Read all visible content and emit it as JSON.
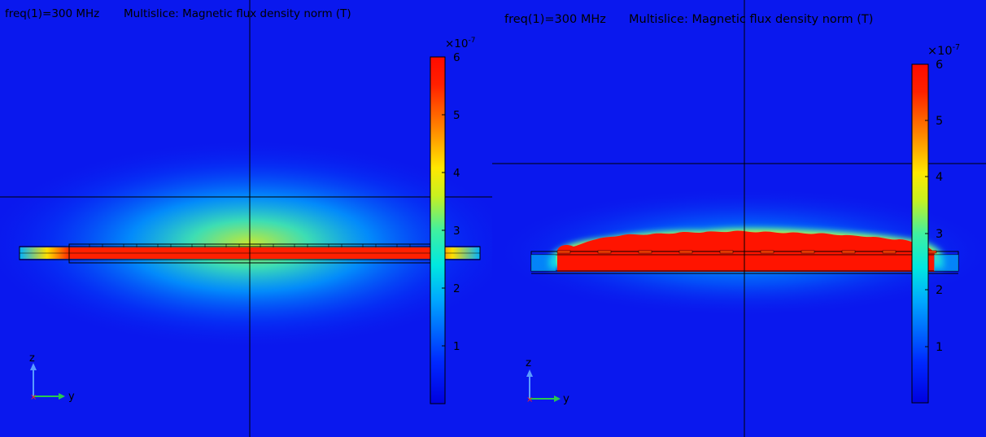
{
  "panels": [
    {
      "id": "left",
      "header": {
        "freq": "freq(1)=300 MHz",
        "plot": "Multislice: Magnetic flux density norm (T)"
      },
      "colorbar": {
        "exponent_base": "×10",
        "exponent_power": "-7",
        "ticks": [
          "1",
          "2",
          "3",
          "4",
          "5",
          "6"
        ],
        "range": [
          0,
          6
        ]
      },
      "axes": {
        "vertical": "z",
        "horizontal": "y"
      }
    },
    {
      "id": "right",
      "header": {
        "freq": "freq(1)=300 MHz",
        "plot": "Multislice: Magnetic flux density norm (T)"
      },
      "colorbar": {
        "exponent_base": "×10",
        "exponent_power": "-7",
        "ticks": [
          "1",
          "2",
          "3",
          "4",
          "5",
          "6"
        ],
        "range": [
          0,
          6
        ]
      },
      "axes": {
        "vertical": "z",
        "horizontal": "y"
      }
    }
  ],
  "colors": {
    "background": "#0a18ee",
    "max": "#ff0a00",
    "line": "#000000"
  }
}
